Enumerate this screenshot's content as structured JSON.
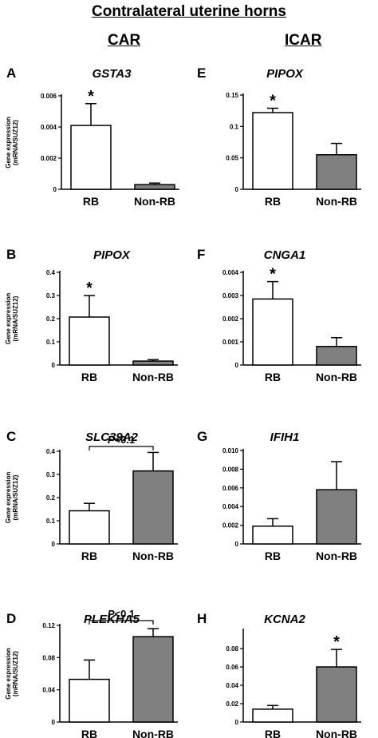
{
  "figure": {
    "title": "Contralateral uterine horns",
    "columns": [
      "CAR",
      "ICAR"
    ],
    "ylabel": [
      "Gene expression",
      "(mRNA/SUZ12)"
    ]
  },
  "chart_data": [
    {
      "panel": "A",
      "gene": "GSTA3",
      "type": "bar",
      "categories": [
        "RB",
        "Non-RB"
      ],
      "values": [
        0.0041,
        0.0003
      ],
      "errors": [
        0.0014,
        0.0001
      ],
      "fills": [
        "#ffffff",
        "#808080"
      ],
      "ylim": [
        0,
        0.006
      ],
      "yticks": [
        "0",
        "0.002",
        "0.004",
        "0.006"
      ],
      "annotation": {
        "type": "star",
        "text": "*"
      }
    },
    {
      "panel": "E",
      "gene": "PIPOX",
      "type": "bar",
      "categories": [
        "RB",
        "Non-RB"
      ],
      "values": [
        0.122,
        0.055
      ],
      "errors": [
        0.007,
        0.018
      ],
      "fills": [
        "#ffffff",
        "#808080"
      ],
      "ylim": [
        0,
        0.15
      ],
      "yticks": [
        "0",
        "0.05",
        "0.1",
        "0.15"
      ],
      "annotation": {
        "type": "star",
        "text": "*"
      }
    },
    {
      "panel": "B",
      "gene": "PIPOX",
      "type": "bar",
      "categories": [
        "RB",
        "Non-RB"
      ],
      "values": [
        0.207,
        0.017
      ],
      "errors": [
        0.093,
        0.006
      ],
      "fills": [
        "#ffffff",
        "#808080"
      ],
      "ylim": [
        0,
        0.4
      ],
      "yticks": [
        "0",
        "0.1",
        "0.2",
        "0.3",
        "0.4"
      ],
      "annotation": {
        "type": "star",
        "text": "*"
      }
    },
    {
      "panel": "F",
      "gene": "CNGA1",
      "type": "bar",
      "categories": [
        "RB",
        "Non-RB"
      ],
      "values": [
        0.00285,
        0.0008
      ],
      "errors": [
        0.00075,
        0.00038
      ],
      "fills": [
        "#ffffff",
        "#808080"
      ],
      "ylim": [
        0,
        0.004
      ],
      "yticks": [
        "0",
        "0.001",
        "0.002",
        "0.003",
        "0.004"
      ],
      "annotation": {
        "type": "star",
        "text": "*"
      }
    },
    {
      "panel": "C",
      "gene": "SLC39A2",
      "type": "bar",
      "categories": [
        "RB",
        "Non-RB"
      ],
      "values": [
        0.143,
        0.315
      ],
      "errors": [
        0.032,
        0.08
      ],
      "fills": [
        "#ffffff",
        "#808080"
      ],
      "ylim": [
        0,
        0.4
      ],
      "yticks": [
        "0",
        "0.1",
        "0.2",
        "0.3",
        "0.4"
      ],
      "annotation": {
        "type": "bracket",
        "text": "P<0.1"
      }
    },
    {
      "panel": "G",
      "gene": "IFIH1",
      "type": "bar",
      "categories": [
        "RB",
        "Non-RB"
      ],
      "values": [
        0.0019,
        0.0058
      ],
      "errors": [
        0.0008,
        0.003
      ],
      "fills": [
        "#ffffff",
        "#808080"
      ],
      "ylim": [
        0,
        0.01
      ],
      "yticks": [
        "0",
        "0.002",
        "0.004",
        "0.006",
        "0.008",
        "0.010"
      ],
      "annotation": null
    },
    {
      "panel": "D",
      "gene": "PLEKHA5",
      "type": "bar",
      "categories": [
        "RB",
        "Non-RB"
      ],
      "values": [
        0.053,
        0.106
      ],
      "errors": [
        0.024,
        0.01
      ],
      "fills": [
        "#ffffff",
        "#808080"
      ],
      "ylim": [
        0,
        0.12
      ],
      "yticks": [
        "0",
        "0.04",
        "0.08",
        "0.12"
      ],
      "annotation": {
        "type": "bracket",
        "text": "P<0.1"
      }
    },
    {
      "panel": "H",
      "gene": "KCNA2",
      "type": "bar",
      "categories": [
        "RB",
        "Non-RB"
      ],
      "values": [
        0.014,
        0.06
      ],
      "errors": [
        0.004,
        0.019
      ],
      "fills": [
        "#ffffff",
        "#808080"
      ],
      "ylim": [
        0,
        0.1
      ],
      "yticks": [
        "0",
        "0.02",
        "0.04",
        "0.06",
        "0.08"
      ],
      "annotation": {
        "type": "star",
        "text": "*"
      }
    }
  ]
}
